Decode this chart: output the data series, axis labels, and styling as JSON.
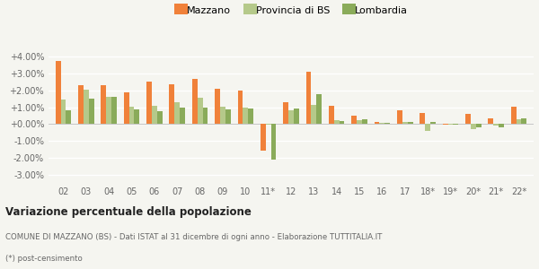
{
  "categories": [
    "02",
    "03",
    "04",
    "05",
    "06",
    "07",
    "08",
    "09",
    "10",
    "11*",
    "12",
    "13",
    "14",
    "15",
    "16",
    "17",
    "18*",
    "19*",
    "20*",
    "21*",
    "22*"
  ],
  "mazzano": [
    3.75,
    2.3,
    2.3,
    1.9,
    2.55,
    2.35,
    2.7,
    2.1,
    2.0,
    -1.6,
    1.3,
    3.1,
    1.1,
    0.5,
    0.15,
    0.8,
    0.65,
    -0.05,
    0.6,
    0.35,
    1.05
  ],
  "provincia_bs": [
    1.45,
    2.05,
    1.6,
    1.05,
    1.1,
    1.3,
    1.55,
    1.05,
    1.0,
    -0.05,
    0.8,
    1.15,
    0.25,
    0.25,
    0.1,
    0.15,
    -0.4,
    -0.05,
    -0.3,
    -0.1,
    0.3
  ],
  "lombardia": [
    0.8,
    1.5,
    1.6,
    0.85,
    0.75,
    1.0,
    1.0,
    0.85,
    0.95,
    -2.1,
    0.95,
    1.8,
    0.2,
    0.3,
    0.05,
    0.15,
    0.15,
    -0.05,
    -0.2,
    -0.2,
    0.35
  ],
  "color_mazzano": "#f0813a",
  "color_provincia": "#b5c98a",
  "color_lombardia": "#8aab5a",
  "bg_color": "#f5f5f0",
  "grid_color": "#ffffff",
  "title": "Variazione percentuale della popolazione",
  "subtitle": "COMUNE DI MAZZANO (BS) - Dati ISTAT al 31 dicembre di ogni anno - Elaborazione TUTTITALIA.IT",
  "footnote": "(*) post-censimento",
  "ylim": [
    -3.5,
    4.5
  ],
  "yticks": [
    -3.0,
    -2.0,
    -1.0,
    0.0,
    1.0,
    2.0,
    3.0,
    4.0
  ]
}
